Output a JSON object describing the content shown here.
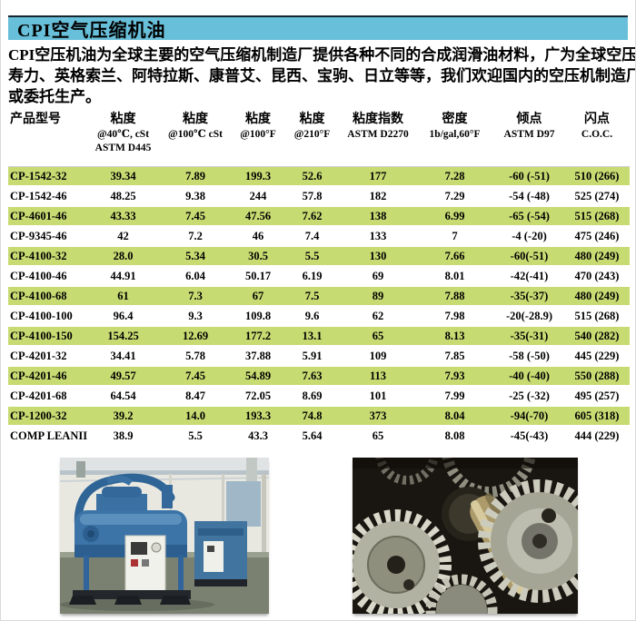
{
  "header": {
    "title": "CPI空气压缩机油"
  },
  "intro": {
    "line1": " CPI空压机油为全球主要的空气压缩机制造厂提供各种不同的合成润滑油材料，广为全球空压机厂家配套:",
    "line2": "寿力、英格索兰、阿特拉斯、康普艾、昆西、宝驹、日立等等，我们欢迎国内的空压机制造厂的贴牌配套",
    "line3": "或委托生产。"
  },
  "table": {
    "columns": [
      {
        "title": "产品型号",
        "sub1": "",
        "sub2": ""
      },
      {
        "title": "粘度",
        "sub1": "@40℃, cSt",
        "sub2": "ASTM D445"
      },
      {
        "title": "粘度",
        "sub1": "@100℃ cSt",
        "sub2": ""
      },
      {
        "title": "粘度",
        "sub1": "@100°F",
        "sub2": ""
      },
      {
        "title": "粘度",
        "sub1": "@210°F",
        "sub2": ""
      },
      {
        "title": "粘度指数",
        "sub1": "ASTM D2270",
        "sub2": ""
      },
      {
        "title": "密度",
        "sub1": "1b/gal,60°F",
        "sub2": ""
      },
      {
        "title": "倾点",
        "sub1": "ASTM D97",
        "sub2": ""
      },
      {
        "title": "闪点",
        "sub1": "C.O.C.",
        "sub2": ""
      }
    ],
    "rows": [
      [
        "CP-1542-32",
        "39.34",
        "7.89",
        "199.3",
        "52.6",
        "177",
        "7.28",
        "-60 (-51)",
        "510 (266)"
      ],
      [
        "CP-1542-46",
        "48.25",
        "9.38",
        "244",
        "57.8",
        "182",
        "7.29",
        "-54 (-48)",
        "525 (274)"
      ],
      [
        "CP-4601-46",
        "43.33",
        "7.45",
        "47.56",
        "7.62",
        "138",
        "6.99",
        "-65 (-54)",
        "515 (268)"
      ],
      [
        "CP-9345-46",
        "42",
        "7.2",
        "46",
        "7.4",
        "133",
        "7",
        "-4 (-20)",
        "475 (246)"
      ],
      [
        "CP-4100-32",
        "28.0",
        "5.34",
        "30.5",
        "5.5",
        "130",
        "7.66",
        "-60(-51)",
        "480 (249)"
      ],
      [
        "CP-4100-46",
        "44.91",
        "6.04",
        "50.17",
        "6.19",
        "69",
        "8.01",
        "-42(-41)",
        "470 (243)"
      ],
      [
        "CP-4100-68",
        "61",
        "7.3",
        "67",
        "7.5",
        "89",
        "7.88",
        "-35(-37)",
        "480 (249)"
      ],
      [
        "CP-4100-100",
        "96.4",
        "9.3",
        "109.8",
        "9.6",
        "62",
        "7.98",
        "-20(-28.9)",
        "515 (268)"
      ],
      [
        "CP-4100-150",
        "154.25",
        "12.69",
        "177.2",
        "13.1",
        "65",
        "8.13",
        "-35(-31)",
        "540 (282)"
      ],
      [
        "CP-4201-32",
        "34.41",
        "5.78",
        "37.88",
        "5.91",
        "109",
        "7.85",
        "-58 (-50)",
        "445 (229)"
      ],
      [
        "CP-4201-46",
        "49.57",
        "7.45",
        "54.89",
        "7.63",
        "113",
        "7.93",
        "-40 (-40)",
        "550 (288)"
      ],
      [
        "CP-4201-68",
        "64.54",
        "8.47",
        "72.05",
        "8.69",
        "101",
        "7.99",
        "-25 (-32)",
        "495 (257)"
      ],
      [
        "CP-1200-32",
        "39.2",
        "14.0",
        "193.3",
        "74.8",
        "373",
        "8.04",
        "-94(-70)",
        "605 (318)"
      ],
      [
        "COMP LEANII",
        "38.9",
        "5.5",
        "43.3",
        "5.64",
        "65",
        "8.08",
        "-45(-43)",
        "444 (229)"
      ]
    ]
  },
  "photos": [
    {
      "name": "compressor-photo"
    },
    {
      "name": "gears-photo"
    }
  ],
  "colors": {
    "title_bar_bg": "#68bfd9",
    "title_bar_top_line": "#16262f",
    "row_highlight": "#c6db72",
    "text": "#000000"
  }
}
